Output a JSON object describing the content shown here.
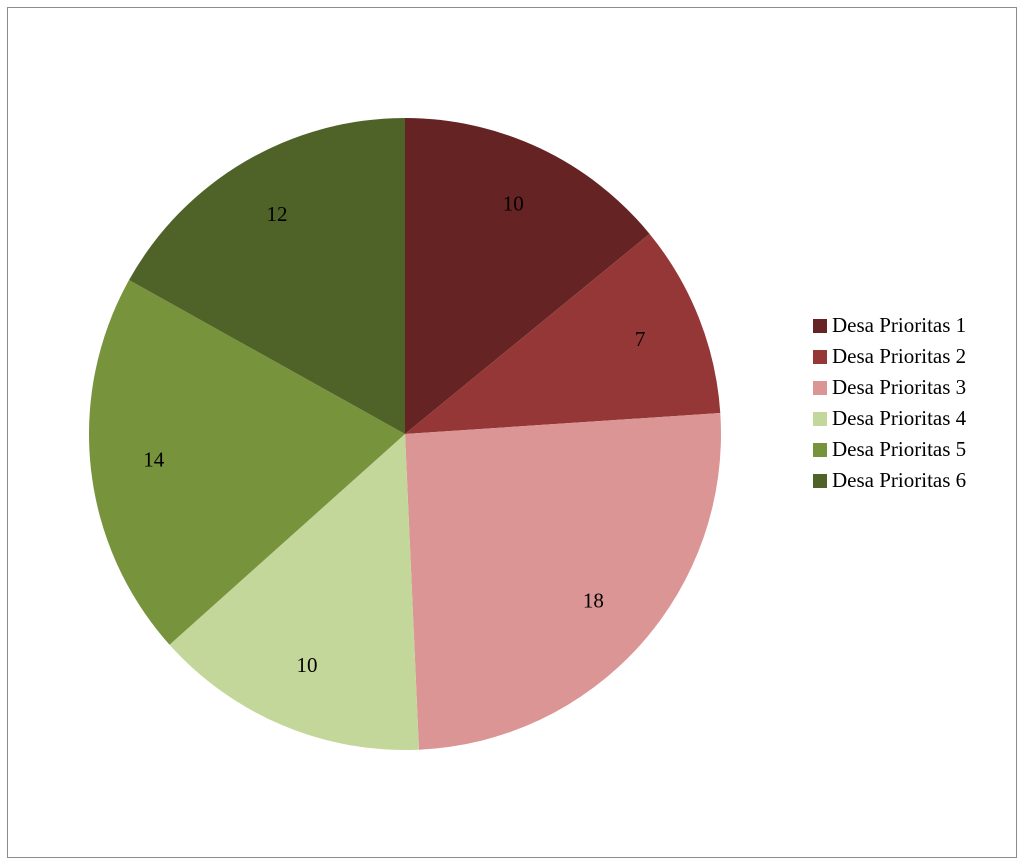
{
  "chart_data": {
    "type": "pie",
    "title": "",
    "start_angle_deg": 0,
    "direction": "clockwise",
    "legend_position": "right",
    "categories": [
      "Desa Prioritas 1",
      "Desa Prioritas 2",
      "Desa Prioritas 3",
      "Desa Prioritas 4",
      "Desa Prioritas 5",
      "Desa Prioritas 6"
    ],
    "values": [
      10,
      7,
      18,
      10,
      14,
      12
    ],
    "data_labels": [
      "10",
      "7",
      "18",
      "10",
      "14",
      "12"
    ],
    "colors": [
      "#652323",
      "#953737",
      "#db9595",
      "#c4d79b",
      "#77933c",
      "#4f6228"
    ]
  }
}
